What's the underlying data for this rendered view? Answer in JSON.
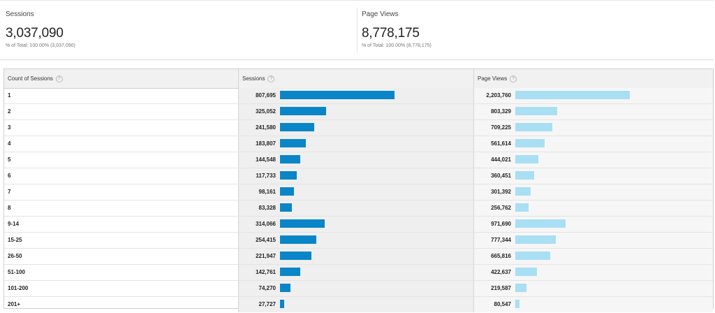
{
  "summary": {
    "sessions": {
      "label": "Sessions",
      "value": "3,037,090",
      "sub": "% of Total: 100.00% (3,037,090)"
    },
    "pageviews": {
      "label": "Page Views",
      "value": "8,778,175",
      "sub": "% of Total: 100.00% (8,778,175)"
    }
  },
  "table": {
    "headers": [
      "Count of Sessions",
      "Sessions",
      "Page Views"
    ],
    "help_glyph": "?",
    "max": {
      "sessions": 807695,
      "pageviews": 2203760
    },
    "rows": [
      {
        "key": "1",
        "sessions": "807,695",
        "sessions_value": 807695,
        "pageviews": "2,203,760",
        "pageviews_value": 2203760
      },
      {
        "key": "2",
        "sessions": "325,052",
        "sessions_value": 325052,
        "pageviews": "803,329",
        "pageviews_value": 803329
      },
      {
        "key": "3",
        "sessions": "241,580",
        "sessions_value": 241580,
        "pageviews": "709,225",
        "pageviews_value": 709225
      },
      {
        "key": "4",
        "sessions": "183,807",
        "sessions_value": 183807,
        "pageviews": "561,614",
        "pageviews_value": 561614
      },
      {
        "key": "5",
        "sessions": "144,548",
        "sessions_value": 144548,
        "pageviews": "444,021",
        "pageviews_value": 444021
      },
      {
        "key": "6",
        "sessions": "117,733",
        "sessions_value": 117733,
        "pageviews": "360,451",
        "pageviews_value": 360451
      },
      {
        "key": "7",
        "sessions": "98,161",
        "sessions_value": 98161,
        "pageviews": "301,392",
        "pageviews_value": 301392
      },
      {
        "key": "8",
        "sessions": "83,328",
        "sessions_value": 83328,
        "pageviews": "256,762",
        "pageviews_value": 256762
      },
      {
        "key": "9-14",
        "sessions": "314,066",
        "sessions_value": 314066,
        "pageviews": "971,690",
        "pageviews_value": 971690
      },
      {
        "key": "15-25",
        "sessions": "254,415",
        "sessions_value": 254415,
        "pageviews": "777,344",
        "pageviews_value": 777344
      },
      {
        "key": "26-50",
        "sessions": "221,947",
        "sessions_value": 221947,
        "pageviews": "665,816",
        "pageviews_value": 665816
      },
      {
        "key": "51-100",
        "sessions": "142,761",
        "sessions_value": 142761,
        "pageviews": "422,637",
        "pageviews_value": 422637
      },
      {
        "key": "101-200",
        "sessions": "74,270",
        "sessions_value": 74270,
        "pageviews": "219,587",
        "pageviews_value": 219587
      },
      {
        "key": "201+",
        "sessions": "27,727",
        "sessions_value": 27727,
        "pageviews": "80,547",
        "pageviews_value": 80547
      }
    ]
  },
  "colors": {
    "sessions_bar": "#0a85c7",
    "pageviews_bar": "#a9dff3"
  }
}
